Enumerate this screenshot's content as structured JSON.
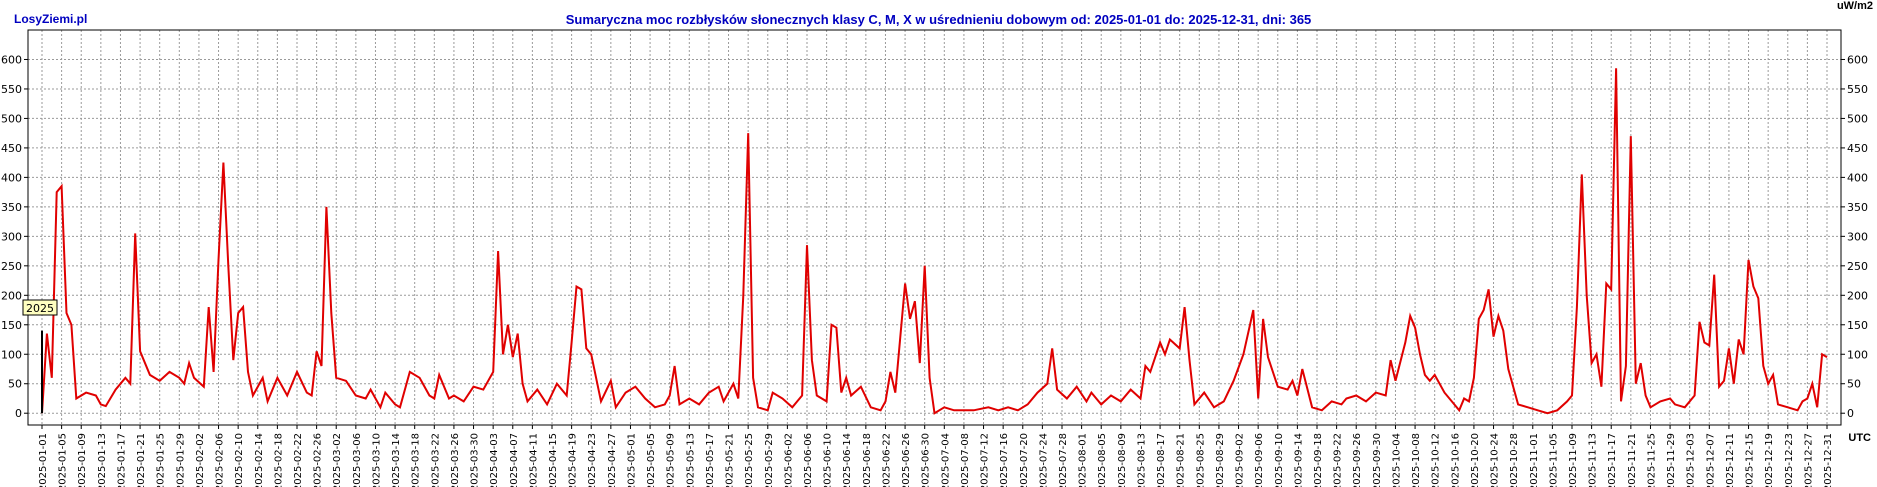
{
  "header": {
    "brand": "LosyZiemi.pl",
    "title": "Sumaryczna moc rozbłysków słonecznych klasy C, M, X w uśrednieniu dobowym od: 2025-01-01 do: 2025-12-31, dni: 365",
    "unit": "uW/m2",
    "utc": "UTC"
  },
  "chart_data": {
    "type": "line",
    "title": "Sumaryczna moc rozbłysków słonecznych klasy C, M, X w uśrednieniu dobowym od: 2025-01-01 do: 2025-12-31, dni: 365",
    "xlabel": "UTC",
    "ylabel": "uW/m2",
    "ylim": [
      -20,
      650
    ],
    "yticks": [
      0,
      50,
      100,
      150,
      200,
      250,
      300,
      350,
      400,
      450,
      500,
      550,
      600
    ],
    "grid": true,
    "year_marker": "2025",
    "line_color": "#e00000",
    "x_start": "2025-01-01",
    "x_end": "2025-12-31",
    "x_tick_step_days": 4,
    "anchors": [
      [
        "2025-01-01",
        0
      ],
      [
        "2025-01-02",
        135
      ],
      [
        "2025-01-03",
        60
      ],
      [
        "2025-01-04",
        375
      ],
      [
        "2025-01-05",
        385
      ],
      [
        "2025-01-06",
        170
      ],
      [
        "2025-01-07",
        150
      ],
      [
        "2025-01-08",
        25
      ],
      [
        "2025-01-10",
        35
      ],
      [
        "2025-01-12",
        30
      ],
      [
        "2025-01-13",
        15
      ],
      [
        "2025-01-14",
        12
      ],
      [
        "2025-01-16",
        40
      ],
      [
        "2025-01-18",
        60
      ],
      [
        "2025-01-19",
        50
      ],
      [
        "2025-01-20",
        305
      ],
      [
        "2025-01-21",
        105
      ],
      [
        "2025-01-23",
        65
      ],
      [
        "2025-01-25",
        55
      ],
      [
        "2025-01-27",
        70
      ],
      [
        "2025-01-29",
        60
      ],
      [
        "2025-01-30",
        50
      ],
      [
        "2025-01-31",
        85
      ],
      [
        "2025-02-01",
        60
      ],
      [
        "2025-02-03",
        45
      ],
      [
        "2025-02-04",
        180
      ],
      [
        "2025-02-05",
        70
      ],
      [
        "2025-02-06",
        260
      ],
      [
        "2025-02-07",
        425
      ],
      [
        "2025-02-08",
        250
      ],
      [
        "2025-02-09",
        90
      ],
      [
        "2025-02-10",
        170
      ],
      [
        "2025-02-11",
        180
      ],
      [
        "2025-02-12",
        70
      ],
      [
        "2025-02-13",
        30
      ],
      [
        "2025-02-15",
        60
      ],
      [
        "2025-02-16",
        20
      ],
      [
        "2025-02-18",
        60
      ],
      [
        "2025-02-20",
        30
      ],
      [
        "2025-02-22",
        70
      ],
      [
        "2025-02-24",
        35
      ],
      [
        "2025-02-25",
        30
      ],
      [
        "2025-02-26",
        105
      ],
      [
        "2025-02-27",
        80
      ],
      [
        "2025-02-28",
        350
      ],
      [
        "2025-03-01",
        170
      ],
      [
        "2025-03-02",
        60
      ],
      [
        "2025-03-04",
        55
      ],
      [
        "2025-03-06",
        30
      ],
      [
        "2025-03-08",
        25
      ],
      [
        "2025-03-09",
        40
      ],
      [
        "2025-03-11",
        10
      ],
      [
        "2025-03-12",
        35
      ],
      [
        "2025-03-14",
        15
      ],
      [
        "2025-03-15",
        10
      ],
      [
        "2025-03-17",
        70
      ],
      [
        "2025-03-19",
        60
      ],
      [
        "2025-03-21",
        30
      ],
      [
        "2025-03-22",
        25
      ],
      [
        "2025-03-23",
        65
      ],
      [
        "2025-03-25",
        25
      ],
      [
        "2025-03-26",
        30
      ],
      [
        "2025-03-28",
        20
      ],
      [
        "2025-03-30",
        45
      ],
      [
        "2025-04-01",
        40
      ],
      [
        "2025-04-03",
        70
      ],
      [
        "2025-04-04",
        275
      ],
      [
        "2025-04-05",
        100
      ],
      [
        "2025-04-06",
        150
      ],
      [
        "2025-04-07",
        95
      ],
      [
        "2025-04-08",
        135
      ],
      [
        "2025-04-09",
        50
      ],
      [
        "2025-04-10",
        20
      ],
      [
        "2025-04-12",
        40
      ],
      [
        "2025-04-14",
        15
      ],
      [
        "2025-04-16",
        50
      ],
      [
        "2025-04-18",
        30
      ],
      [
        "2025-04-19",
        120
      ],
      [
        "2025-04-20",
        215
      ],
      [
        "2025-04-21",
        210
      ],
      [
        "2025-04-22",
        110
      ],
      [
        "2025-04-23",
        100
      ],
      [
        "2025-04-25",
        20
      ],
      [
        "2025-04-27",
        55
      ],
      [
        "2025-04-28",
        10
      ],
      [
        "2025-04-30",
        35
      ],
      [
        "2025-05-02",
        45
      ],
      [
        "2025-05-04",
        25
      ],
      [
        "2025-05-06",
        10
      ],
      [
        "2025-05-08",
        15
      ],
      [
        "2025-05-09",
        30
      ],
      [
        "2025-05-10",
        80
      ],
      [
        "2025-05-11",
        15
      ],
      [
        "2025-05-13",
        25
      ],
      [
        "2025-05-15",
        15
      ],
      [
        "2025-05-17",
        35
      ],
      [
        "2025-05-19",
        45
      ],
      [
        "2025-05-20",
        20
      ],
      [
        "2025-05-22",
        50
      ],
      [
        "2025-05-23",
        25
      ],
      [
        "2025-05-24",
        200
      ],
      [
        "2025-05-25",
        475
      ],
      [
        "2025-05-26",
        60
      ],
      [
        "2025-05-27",
        10
      ],
      [
        "2025-05-29",
        5
      ],
      [
        "2025-05-30",
        35
      ],
      [
        "2025-06-01",
        25
      ],
      [
        "2025-06-03",
        10
      ],
      [
        "2025-06-04",
        20
      ],
      [
        "2025-06-05",
        30
      ],
      [
        "2025-06-06",
        285
      ],
      [
        "2025-06-07",
        90
      ],
      [
        "2025-06-08",
        30
      ],
      [
        "2025-06-10",
        20
      ],
      [
        "2025-06-11",
        150
      ],
      [
        "2025-06-12",
        145
      ],
      [
        "2025-06-13",
        35
      ],
      [
        "2025-06-14",
        60
      ],
      [
        "2025-06-15",
        30
      ],
      [
        "2025-06-17",
        45
      ],
      [
        "2025-06-19",
        10
      ],
      [
        "2025-06-21",
        5
      ],
      [
        "2025-06-22",
        20
      ],
      [
        "2025-06-23",
        70
      ],
      [
        "2025-06-24",
        35
      ],
      [
        "2025-06-26",
        220
      ],
      [
        "2025-06-27",
        160
      ],
      [
        "2025-06-28",
        190
      ],
      [
        "2025-06-29",
        85
      ],
      [
        "2025-06-30",
        250
      ],
      [
        "2025-07-01",
        60
      ],
      [
        "2025-07-02",
        0
      ],
      [
        "2025-07-04",
        10
      ],
      [
        "2025-07-06",
        5
      ],
      [
        "2025-07-10",
        5
      ],
      [
        "2025-07-13",
        10
      ],
      [
        "2025-07-15",
        5
      ],
      [
        "2025-07-17",
        10
      ],
      [
        "2025-07-19",
        5
      ],
      [
        "2025-07-21",
        15
      ],
      [
        "2025-07-23",
        35
      ],
      [
        "2025-07-25",
        50
      ],
      [
        "2025-07-26",
        110
      ],
      [
        "2025-07-27",
        40
      ],
      [
        "2025-07-29",
        25
      ],
      [
        "2025-07-31",
        45
      ],
      [
        "2025-08-02",
        20
      ],
      [
        "2025-08-03",
        35
      ],
      [
        "2025-08-05",
        15
      ],
      [
        "2025-08-07",
        30
      ],
      [
        "2025-08-09",
        20
      ],
      [
        "2025-08-11",
        40
      ],
      [
        "2025-08-13",
        25
      ],
      [
        "2025-08-14",
        80
      ],
      [
        "2025-08-15",
        70
      ],
      [
        "2025-08-17",
        120
      ],
      [
        "2025-08-18",
        100
      ],
      [
        "2025-08-19",
        125
      ],
      [
        "2025-08-21",
        110
      ],
      [
        "2025-08-22",
        180
      ],
      [
        "2025-08-23",
        90
      ],
      [
        "2025-08-24",
        15
      ],
      [
        "2025-08-26",
        35
      ],
      [
        "2025-08-28",
        10
      ],
      [
        "2025-08-30",
        20
      ],
      [
        "2025-09-01",
        55
      ],
      [
        "2025-09-03",
        100
      ],
      [
        "2025-09-05",
        175
      ],
      [
        "2025-09-06",
        25
      ],
      [
        "2025-09-07",
        160
      ],
      [
        "2025-09-08",
        95
      ],
      [
        "2025-09-10",
        45
      ],
      [
        "2025-09-12",
        40
      ],
      [
        "2025-09-13",
        55
      ],
      [
        "2025-09-14",
        30
      ],
      [
        "2025-09-15",
        75
      ],
      [
        "2025-09-17",
        10
      ],
      [
        "2025-09-19",
        5
      ],
      [
        "2025-09-21",
        20
      ],
      [
        "2025-09-23",
        15
      ],
      [
        "2025-09-24",
        25
      ],
      [
        "2025-09-26",
        30
      ],
      [
        "2025-09-28",
        20
      ],
      [
        "2025-09-30",
        35
      ],
      [
        "2025-10-02",
        30
      ],
      [
        "2025-10-03",
        90
      ],
      [
        "2025-10-04",
        55
      ],
      [
        "2025-10-06",
        120
      ],
      [
        "2025-10-07",
        165
      ],
      [
        "2025-10-08",
        145
      ],
      [
        "2025-10-09",
        100
      ],
      [
        "2025-10-10",
        65
      ],
      [
        "2025-10-11",
        55
      ],
      [
        "2025-10-12",
        65
      ],
      [
        "2025-10-14",
        35
      ],
      [
        "2025-10-16",
        15
      ],
      [
        "2025-10-17",
        5
      ],
      [
        "2025-10-18",
        25
      ],
      [
        "2025-10-19",
        20
      ],
      [
        "2025-10-20",
        60
      ],
      [
        "2025-10-21",
        160
      ],
      [
        "2025-10-22",
        175
      ],
      [
        "2025-10-23",
        210
      ],
      [
        "2025-10-24",
        130
      ],
      [
        "2025-10-25",
        165
      ],
      [
        "2025-10-26",
        140
      ],
      [
        "2025-10-27",
        75
      ],
      [
        "2025-10-29",
        15
      ],
      [
        "2025-10-31",
        10
      ],
      [
        "2025-11-02",
        5
      ],
      [
        "2025-11-04",
        0
      ],
      [
        "2025-11-06",
        5
      ],
      [
        "2025-11-08",
        20
      ],
      [
        "2025-11-09",
        30
      ],
      [
        "2025-11-10",
        180
      ],
      [
        "2025-11-11",
        405
      ],
      [
        "2025-11-12",
        200
      ],
      [
        "2025-11-13",
        85
      ],
      [
        "2025-11-14",
        100
      ],
      [
        "2025-11-15",
        45
      ],
      [
        "2025-11-16",
        220
      ],
      [
        "2025-11-17",
        210
      ],
      [
        "2025-11-18",
        585
      ],
      [
        "2025-11-19",
        20
      ],
      [
        "2025-11-20",
        80
      ],
      [
        "2025-11-21",
        470
      ],
      [
        "2025-11-22",
        50
      ],
      [
        "2025-11-23",
        85
      ],
      [
        "2025-11-24",
        30
      ],
      [
        "2025-11-25",
        10
      ],
      [
        "2025-11-27",
        20
      ],
      [
        "2025-11-29",
        25
      ],
      [
        "2025-11-30",
        15
      ],
      [
        "2025-12-02",
        10
      ],
      [
        "2025-12-04",
        30
      ],
      [
        "2025-12-05",
        155
      ],
      [
        "2025-12-06",
        120
      ],
      [
        "2025-12-07",
        115
      ],
      [
        "2025-12-08",
        235
      ],
      [
        "2025-12-09",
        45
      ],
      [
        "2025-12-10",
        55
      ],
      [
        "2025-12-11",
        110
      ],
      [
        "2025-12-12",
        50
      ],
      [
        "2025-12-13",
        125
      ],
      [
        "2025-12-14",
        100
      ],
      [
        "2025-12-15",
        260
      ],
      [
        "2025-12-16",
        215
      ],
      [
        "2025-12-17",
        195
      ],
      [
        "2025-12-18",
        80
      ],
      [
        "2025-12-19",
        50
      ],
      [
        "2025-12-20",
        65
      ],
      [
        "2025-12-21",
        15
      ],
      [
        "2025-12-23",
        10
      ],
      [
        "2025-12-25",
        5
      ],
      [
        "2025-12-26",
        20
      ],
      [
        "2025-12-27",
        25
      ],
      [
        "2025-12-28",
        50
      ],
      [
        "2025-12-29",
        10
      ],
      [
        "2025-12-30",
        100
      ],
      [
        "2025-12-31",
        95
      ]
    ]
  }
}
